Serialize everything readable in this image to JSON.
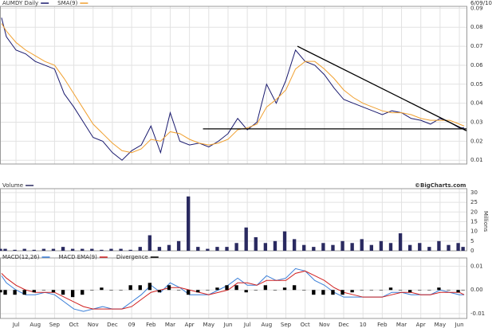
{
  "chart_data": [
    {
      "type": "line",
      "date": "6/09/10",
      "x": [
        0.25,
        0.5,
        1,
        1.5,
        2,
        2.5,
        3,
        3.5,
        4,
        4.5,
        5,
        5.5,
        6,
        6.5,
        7,
        7.5,
        8,
        8.5,
        9,
        9.5,
        10,
        10.5,
        11,
        11.5,
        12,
        12.5,
        13,
        13.5,
        14,
        14.5,
        15,
        15.5,
        16,
        16.5,
        17,
        17.5,
        18,
        18.5,
        19,
        19.5,
        20,
        20.5,
        21,
        21.5,
        22,
        22.5,
        23,
        23.5,
        24,
        24.25
      ],
      "series": [
        {
          "name": "AUMDY Daily",
          "color": "#1a1a6e",
          "values": [
            0.085,
            0.075,
            0.068,
            0.066,
            0.062,
            0.06,
            0.058,
            0.045,
            0.038,
            0.03,
            0.022,
            0.02,
            0.014,
            0.01,
            0.015,
            0.018,
            0.028,
            0.014,
            0.035,
            0.02,
            0.018,
            0.019,
            0.017,
            0.02,
            0.024,
            0.032,
            0.026,
            0.03,
            0.05,
            0.04,
            0.052,
            0.068,
            0.062,
            0.06,
            0.055,
            0.048,
            0.042,
            0.04,
            0.038,
            0.036,
            0.034,
            0.036,
            0.035,
            0.032,
            0.031,
            0.029,
            0.032,
            0.03,
            0.027,
            0.027
          ]
        },
        {
          "name": "SMA(9)",
          "color": "#f0a030",
          "values": [
            0.082,
            0.078,
            0.072,
            0.068,
            0.065,
            0.062,
            0.06,
            0.053,
            0.045,
            0.037,
            0.029,
            0.024,
            0.019,
            0.015,
            0.014,
            0.016,
            0.021,
            0.02,
            0.025,
            0.024,
            0.021,
            0.019,
            0.018,
            0.019,
            0.021,
            0.026,
            0.027,
            0.029,
            0.038,
            0.042,
            0.047,
            0.058,
            0.062,
            0.062,
            0.058,
            0.053,
            0.047,
            0.043,
            0.04,
            0.038,
            0.036,
            0.035,
            0.035,
            0.034,
            0.032,
            0.031,
            0.031,
            0.031,
            0.029,
            0.028
          ]
        }
      ],
      "trendlines": [
        {
          "x": [
            15.6,
            24.37
          ],
          "y": [
            0.07,
            0.0255
          ]
        },
        {
          "x": [
            10.7,
            24.37
          ],
          "y": [
            0.0265,
            0.0265
          ]
        }
      ],
      "xlim": [
        0.17,
        24.37
      ],
      "ylim": [
        0.008,
        0.091
      ],
      "yticks": [
        0.01,
        0.02,
        0.03,
        0.04,
        0.05,
        0.06,
        0.07,
        0.08,
        0.09
      ],
      "grid": true
    },
    {
      "type": "bar",
      "source": "©BigCharts.com",
      "y_label": "Millions",
      "x": [
        0.25,
        0.5,
        1,
        1.5,
        2,
        2.5,
        3,
        3.5,
        4,
        4.5,
        5,
        5.5,
        6,
        6.5,
        7,
        7.5,
        8,
        8.5,
        9,
        9.5,
        10,
        10.5,
        11,
        11.5,
        12,
        12.5,
        13,
        13.5,
        14,
        14.5,
        15,
        15.5,
        16,
        16.5,
        17,
        17.5,
        18,
        18.5,
        19,
        19.5,
        20,
        20.5,
        21,
        21.5,
        22,
        22.5,
        23,
        23.5,
        24,
        24.25
      ],
      "series": [
        {
          "name": "Volume",
          "color": "#2a2a60",
          "values": [
            1,
            1,
            0.5,
            1,
            0.5,
            1,
            1,
            2,
            1,
            1,
            1,
            0.5,
            1,
            1,
            0.5,
            2,
            8,
            2,
            3,
            5,
            28,
            2,
            1,
            2,
            2,
            4,
            12,
            7,
            4,
            5,
            10,
            6,
            3,
            2,
            4,
            3,
            5,
            4,
            6,
            3,
            5,
            4,
            9,
            3,
            4,
            2,
            5,
            3,
            4,
            2
          ]
        }
      ],
      "xlim": [
        0.17,
        24.37
      ],
      "ylim": [
        0,
        32
      ],
      "yticks": [
        0,
        5,
        10,
        15,
        20,
        25,
        30
      ],
      "grid": true
    },
    {
      "type": "line",
      "x": [
        0.25,
        0.5,
        1,
        1.5,
        2,
        2.5,
        3,
        3.5,
        4,
        4.5,
        5,
        5.5,
        6,
        6.5,
        7,
        7.5,
        8,
        8.5,
        9,
        9.5,
        10,
        10.5,
        11,
        11.5,
        12,
        12.5,
        13,
        13.5,
        14,
        14.5,
        15,
        15.5,
        16,
        16.5,
        17,
        17.5,
        18,
        18.5,
        19,
        19.5,
        20,
        20.5,
        21,
        21.5,
        22,
        22.5,
        23,
        23.5,
        24,
        24.25
      ],
      "series": [
        {
          "name": "MACD(12,26)",
          "color": "#3a7fd8",
          "values": [
            0.006,
            0.003,
            0.0,
            -0.002,
            -0.002,
            -0.001,
            -0.002,
            -0.005,
            -0.008,
            -0.009,
            -0.008,
            -0.007,
            -0.008,
            -0.008,
            -0.005,
            -0.002,
            0.002,
            -0.001,
            0.003,
            0.001,
            -0.002,
            -0.002,
            -0.002,
            0.0,
            0.002,
            0.005,
            0.002,
            0.002,
            0.006,
            0.004,
            0.005,
            0.009,
            0.008,
            0.004,
            0.002,
            -0.001,
            -0.003,
            -0.003,
            -0.003,
            -0.003,
            -0.003,
            -0.001,
            -0.001,
            -0.002,
            -0.002,
            -0.002,
            0.0,
            -0.001,
            -0.002,
            -0.002
          ]
        },
        {
          "name": "MACD EMA(9)",
          "color": "#d02020",
          "values": [
            0.007,
            0.005,
            0.002,
            0.0,
            -0.001,
            -0.001,
            -0.001,
            -0.003,
            -0.005,
            -0.007,
            -0.008,
            -0.008,
            -0.008,
            -0.008,
            -0.007,
            -0.004,
            -0.001,
            0.0,
            0.001,
            0.001,
            0.0,
            -0.001,
            -0.002,
            -0.001,
            0.0,
            0.003,
            0.003,
            0.002,
            0.004,
            0.004,
            0.004,
            0.007,
            0.008,
            0.006,
            0.004,
            0.001,
            -0.001,
            -0.002,
            -0.003,
            -0.003,
            -0.003,
            -0.002,
            -0.001,
            -0.001,
            -0.002,
            -0.002,
            -0.001,
            -0.001,
            -0.001,
            -0.002
          ]
        },
        {
          "name": "Divergence",
          "color": "#000000",
          "mark": "bar",
          "values": [
            -0.001,
            -0.002,
            -0.002,
            -0.002,
            -0.001,
            0,
            -0.001,
            -0.002,
            -0.003,
            -0.002,
            0,
            0.001,
            0,
            0,
            0.002,
            0.002,
            0.003,
            -0.001,
            0.002,
            0,
            -0.002,
            -0.001,
            0,
            0.001,
            0.002,
            0.002,
            -0.001,
            0,
            0.002,
            0,
            0.001,
            0.002,
            0,
            -0.002,
            -0.002,
            -0.002,
            -0.002,
            -0.001,
            0,
            0,
            0,
            0.001,
            0,
            -0.001,
            0,
            0,
            0.001,
            0,
            -0.001,
            0
          ]
        }
      ],
      "xlim": [
        0.17,
        24.37
      ],
      "ylim": [
        -0.012,
        0.0135
      ],
      "yticks": [
        0.01,
        {
          "value": 0,
          "label": "0.00"
        },
        -0.01
      ],
      "grid": true,
      "xticks": [
        {
          "value": 1,
          "label": "Jul"
        },
        {
          "value": 2,
          "label": "Aug"
        },
        {
          "value": 3,
          "label": "Sep"
        },
        {
          "value": 4,
          "label": "Oct"
        },
        {
          "value": 5,
          "label": "Nov"
        },
        {
          "value": 6,
          "label": "Dec"
        },
        {
          "value": 7,
          "label": "09"
        },
        {
          "value": 8,
          "label": "Feb"
        },
        {
          "value": 9,
          "label": "Mar"
        },
        {
          "value": 10,
          "label": "Apr"
        },
        {
          "value": 11,
          "label": "May"
        },
        {
          "value": 12,
          "label": "Jun"
        },
        {
          "value": 13,
          "label": "Jul"
        },
        {
          "value": 14,
          "label": "Aug"
        },
        {
          "value": 15,
          "label": "Sep"
        },
        {
          "value": 16,
          "label": "Oct"
        },
        {
          "value": 17,
          "label": "Nov"
        },
        {
          "value": 18,
          "label": "Dec"
        },
        {
          "value": 19,
          "label": "10"
        },
        {
          "value": 20,
          "label": "Feb"
        },
        {
          "value": 21,
          "label": "Mar"
        },
        {
          "value": 22,
          "label": "Apr"
        },
        {
          "value": 23,
          "label": "May"
        },
        {
          "value": 24,
          "label": "Jun"
        }
      ]
    }
  ]
}
